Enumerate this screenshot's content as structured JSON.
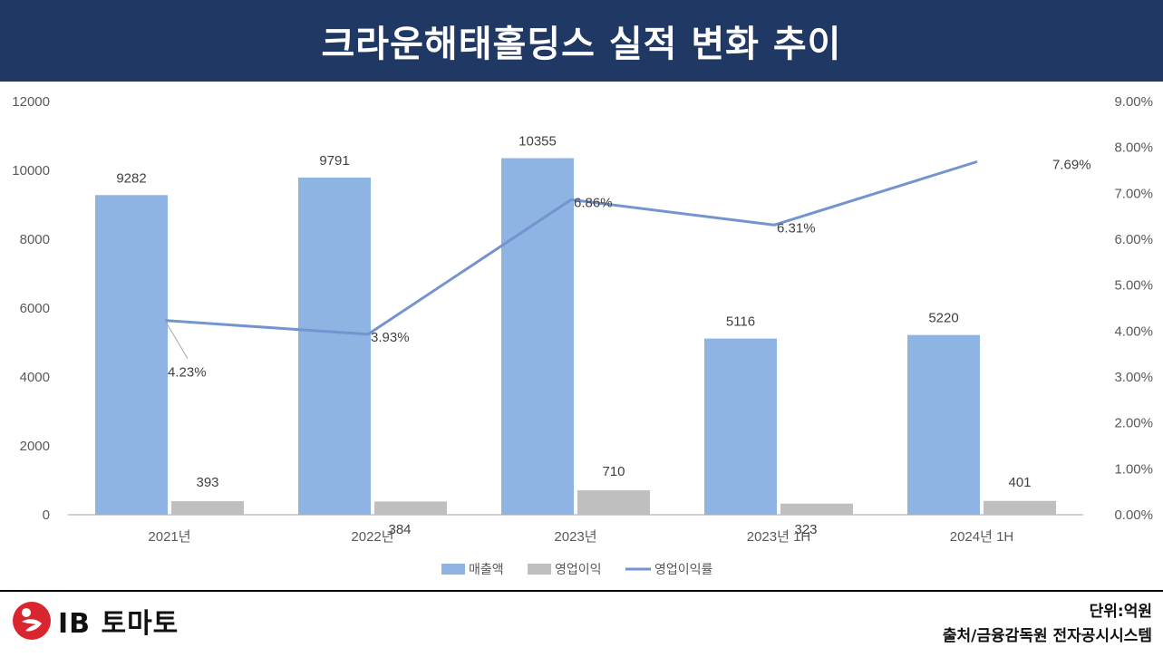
{
  "title": "크라운해태홀딩스 실적 변화 추이",
  "chart_data": {
    "type": "bar+line",
    "categories": [
      "2021년",
      "2022년",
      "2023년",
      "2023년 1H",
      "2024년 1H"
    ],
    "series": [
      {
        "name": "매출액",
        "type": "bar",
        "axis": "left",
        "color": "#8db4e2",
        "values": [
          9282,
          9791,
          10355,
          5116,
          5220
        ],
        "labels": [
          "9282",
          "9791",
          "10355",
          "5116",
          "5220"
        ]
      },
      {
        "name": "영업이익",
        "type": "bar",
        "axis": "left",
        "color": "#bfbfbf",
        "values": [
          393,
          384,
          710,
          323,
          401
        ],
        "labels": [
          "393",
          "384",
          "710",
          "323",
          "401"
        ]
      },
      {
        "name": "영업이익률",
        "type": "line",
        "axis": "right",
        "color": "#7394cf",
        "values": [
          4.23,
          3.93,
          6.86,
          6.31,
          7.69
        ],
        "labels": [
          "4.23%",
          "3.93%",
          "6.86%",
          "6.31%",
          "7.69%"
        ]
      }
    ],
    "y_left": {
      "min": 0,
      "max": 12000,
      "ticks": [
        "0",
        "2000",
        "4000",
        "6000",
        "8000",
        "10000",
        "12000"
      ]
    },
    "y_right": {
      "min": 0,
      "max": 9,
      "ticks": [
        "0.00%",
        "1.00%",
        "2.00%",
        "3.00%",
        "4.00%",
        "5.00%",
        "6.00%",
        "7.00%",
        "8.00%",
        "9.00%"
      ]
    },
    "legend": [
      "매출액",
      "영업이익",
      "영업이익률"
    ],
    "legend_position": "bottom"
  },
  "footer": {
    "logo_text": "IB 토마토",
    "unit": "단위:억원",
    "source": "출처/금융감독원 전자공시시스템"
  }
}
